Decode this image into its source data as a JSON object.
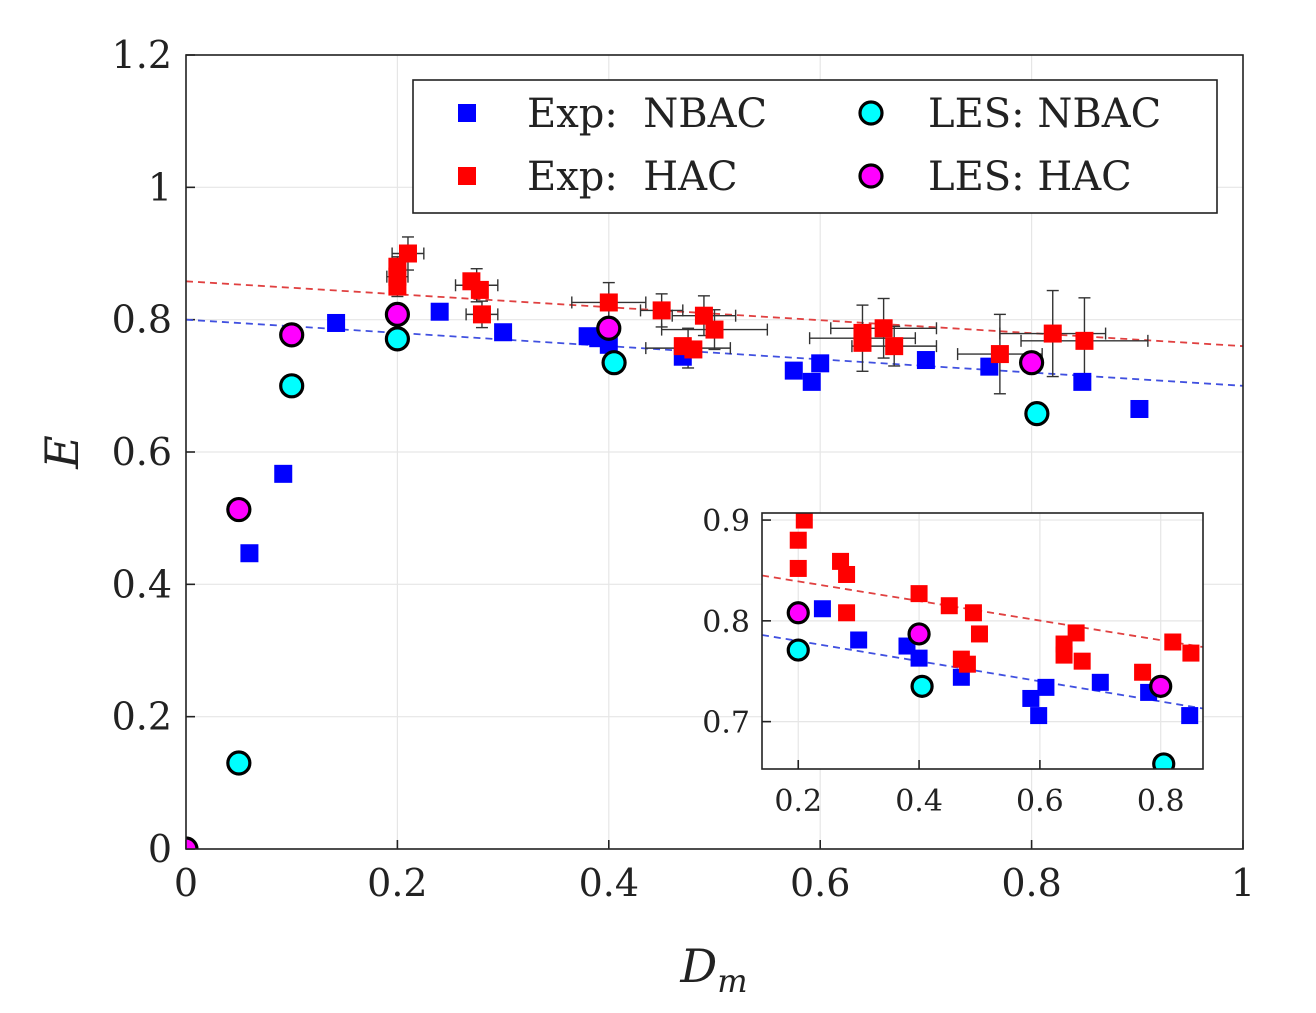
{
  "chart_data": [
    {
      "type": "scatter",
      "xlabel": "D",
      "xlabel_sub": "m",
      "ylabel": "E",
      "xlim": [
        0,
        1
      ],
      "ylim": [
        0,
        1.2
      ],
      "x_ticks": [
        "0",
        "0.2",
        "0.4",
        "0.6",
        "0.8",
        "1"
      ],
      "y_ticks": [
        "0",
        "0.2",
        "0.4",
        "0.6",
        "0.8",
        "1",
        "1.2"
      ],
      "grid": true,
      "legend_position": "top-right",
      "legend": [
        {
          "label": "Exp:  NBAC",
          "marker": "square",
          "color": "#0000ff"
        },
        {
          "label": "Exp:  HAC",
          "marker": "square",
          "color": "#ff0000"
        },
        {
          "label": "LES: NBAC",
          "marker": "circle",
          "color": "#00ffff"
        },
        {
          "label": "LES: HAC",
          "marker": "circle",
          "color": "#ff00ff"
        }
      ],
      "series": [
        {
          "name": "Exp:  NBAC",
          "marker": "square",
          "color": "#0000ff",
          "points": [
            [
              0.06,
              0.447
            ],
            [
              0.092,
              0.567
            ],
            [
              0.142,
              0.795
            ],
            [
              0.24,
              0.812
            ],
            [
              0.3,
              0.781
            ],
            [
              0.38,
              0.775
            ],
            [
              0.39,
              0.772
            ],
            [
              0.4,
              0.762
            ],
            [
              0.47,
              0.744
            ],
            [
              0.575,
              0.723
            ],
            [
              0.592,
              0.706
            ],
            [
              0.6,
              0.734
            ],
            [
              0.7,
              0.739
            ],
            [
              0.76,
              0.729
            ],
            [
              0.848,
              0.706
            ],
            [
              0.902,
              0.665
            ]
          ]
        },
        {
          "name": "Exp:  HAC",
          "marker": "square",
          "color": "#ff0000",
          "points": [
            [
              0.2,
              0.85
            ],
            [
              0.2,
              0.865
            ],
            [
              0.2,
              0.88
            ],
            [
              0.21,
              0.9
            ],
            [
              0.27,
              0.858
            ],
            [
              0.278,
              0.845
            ],
            [
              0.28,
              0.808
            ],
            [
              0.4,
              0.826
            ],
            [
              0.45,
              0.814
            ],
            [
              0.47,
              0.76
            ],
            [
              0.48,
              0.755
            ],
            [
              0.49,
              0.806
            ],
            [
              0.5,
              0.785
            ],
            [
              0.64,
              0.78
            ],
            [
              0.64,
              0.765
            ],
            [
              0.66,
              0.787
            ],
            [
              0.67,
              0.76
            ],
            [
              0.77,
              0.748
            ],
            [
              0.82,
              0.779
            ],
            [
              0.85,
              0.768
            ]
          ]
        },
        {
          "name": "LES: NBAC",
          "marker": "circle",
          "color": "#00ffff",
          "points": [
            [
              0.05,
              0.13
            ],
            [
              0.1,
              0.7
            ],
            [
              0.2,
              0.771
            ],
            [
              0.405,
              0.735
            ],
            [
              0.805,
              0.658
            ]
          ]
        },
        {
          "name": "LES: HAC",
          "marker": "circle",
          "color": "#ff00ff",
          "points": [
            [
              0,
              0
            ],
            [
              0.05,
              0.513
            ],
            [
              0.1,
              0.777
            ],
            [
              0.2,
              0.808
            ],
            [
              0.4,
              0.787
            ],
            [
              0.8,
              0.735
            ]
          ]
        }
      ],
      "error_bars": [
        {
          "x": 0.2,
          "y": 0.865,
          "xerr": 0.01,
          "yerr": 0.03
        },
        {
          "x": 0.21,
          "y": 0.9,
          "xerr": 0.015,
          "yerr": 0.025
        },
        {
          "x": 0.275,
          "y": 0.852,
          "xerr": 0.02,
          "yerr": 0.025
        },
        {
          "x": 0.28,
          "y": 0.808,
          "xerr": 0.015,
          "yerr": 0.02
        },
        {
          "x": 0.4,
          "y": 0.826,
          "xerr": 0.035,
          "yerr": 0.03
        },
        {
          "x": 0.45,
          "y": 0.814,
          "xerr": 0.02,
          "yerr": 0.025
        },
        {
          "x": 0.475,
          "y": 0.757,
          "xerr": 0.04,
          "yerr": 0.03
        },
        {
          "x": 0.49,
          "y": 0.806,
          "xerr": 0.03,
          "yerr": 0.03
        },
        {
          "x": 0.5,
          "y": 0.785,
          "xerr": 0.05,
          "yerr": 0.03
        },
        {
          "x": 0.64,
          "y": 0.772,
          "xerr": 0.05,
          "yerr": 0.05
        },
        {
          "x": 0.66,
          "y": 0.787,
          "xerr": 0.05,
          "yerr": 0.045
        },
        {
          "x": 0.67,
          "y": 0.76,
          "xerr": 0.04,
          "yerr": 0.03
        },
        {
          "x": 0.77,
          "y": 0.748,
          "xerr": 0.04,
          "yerr": 0.06
        },
        {
          "x": 0.82,
          "y": 0.779,
          "xerr": 0.05,
          "yerr": 0.065
        },
        {
          "x": 0.85,
          "y": 0.768,
          "xerr": 0.06,
          "yerr": 0.065
        }
      ],
      "trend_lines": [
        {
          "color": "#e04040",
          "style": "dashed",
          "x": [
            0,
            1
          ],
          "y": [
            0.858,
            0.76
          ]
        },
        {
          "color": "#4050e0",
          "style": "dashed",
          "x": [
            0,
            1
          ],
          "y": [
            0.8,
            0.7
          ]
        }
      ]
    },
    {
      "type": "scatter",
      "role": "inset",
      "xlim": [
        0.14,
        0.87
      ],
      "ylim": [
        0.653,
        0.907
      ],
      "x_ticks": [
        "0.2",
        "0.4",
        "0.6",
        "0.8"
      ],
      "y_ticks": [
        "0.7",
        "0.8",
        "0.9"
      ],
      "grid": true,
      "series": [
        {
          "name": "Exp:  NBAC",
          "marker": "square",
          "color": "#0000ff",
          "points": [
            [
              0.24,
              0.812
            ],
            [
              0.3,
              0.781
            ],
            [
              0.38,
              0.775
            ],
            [
              0.4,
              0.763
            ],
            [
              0.47,
              0.744
            ],
            [
              0.585,
              0.723
            ],
            [
              0.598,
              0.706
            ],
            [
              0.61,
              0.734
            ],
            [
              0.7,
              0.739
            ],
            [
              0.78,
              0.729
            ],
            [
              0.848,
              0.706
            ]
          ]
        },
        {
          "name": "Exp:  HAC",
          "marker": "square",
          "color": "#ff0000",
          "points": [
            [
              0.2,
              0.852
            ],
            [
              0.2,
              0.88
            ],
            [
              0.21,
              0.9
            ],
            [
              0.27,
              0.859
            ],
            [
              0.28,
              0.846
            ],
            [
              0.28,
              0.808
            ],
            [
              0.4,
              0.827
            ],
            [
              0.45,
              0.815
            ],
            [
              0.47,
              0.762
            ],
            [
              0.48,
              0.757
            ],
            [
              0.49,
              0.808
            ],
            [
              0.5,
              0.787
            ],
            [
              0.64,
              0.777
            ],
            [
              0.64,
              0.766
            ],
            [
              0.66,
              0.788
            ],
            [
              0.67,
              0.76
            ],
            [
              0.77,
              0.749
            ],
            [
              0.82,
              0.779
            ],
            [
              0.85,
              0.768
            ]
          ]
        },
        {
          "name": "LES: NBAC",
          "marker": "circle",
          "color": "#00ffff",
          "points": [
            [
              0.2,
              0.771
            ],
            [
              0.405,
              0.735
            ],
            [
              0.805,
              0.658
            ]
          ]
        },
        {
          "name": "LES: HAC",
          "marker": "circle",
          "color": "#ff00ff",
          "points": [
            [
              0.2,
              0.808
            ],
            [
              0.4,
              0.787
            ],
            [
              0.8,
              0.735
            ]
          ]
        }
      ],
      "trend_lines": [
        {
          "color": "#e04040",
          "style": "dashed",
          "x": [
            0.14,
            0.87
          ],
          "y": [
            0.845,
            0.774
          ]
        },
        {
          "color": "#4050e0",
          "style": "dashed",
          "x": [
            0.14,
            0.87
          ],
          "y": [
            0.786,
            0.713
          ]
        }
      ]
    }
  ]
}
